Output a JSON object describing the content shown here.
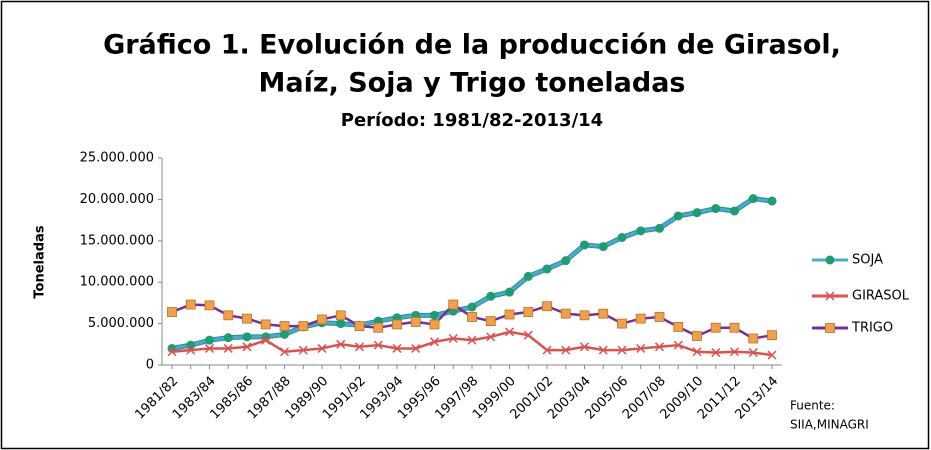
{
  "chart_data": {
    "type": "line",
    "title": [
      "Gráfico 1. Evolución de la producción de Girasol,",
      "Maíz, Soja y Trigo toneladas"
    ],
    "subtitle": "Período: 1981/82-2013/14",
    "y_label": "Toneladas",
    "source": [
      "Fuente:",
      "SIIA,MINAGRI"
    ],
    "categories": [
      "1981/82",
      null,
      "1983/84",
      null,
      "1985/86",
      null,
      "1987/88",
      null,
      "1989/90",
      null,
      "1991/92",
      null,
      "1993/94",
      null,
      "1995/96",
      null,
      "1997/98",
      null,
      "1999/00",
      null,
      "2001/02",
      null,
      "2003/04",
      null,
      "2005/06",
      null,
      "2007/08",
      null,
      "2009/10",
      null,
      "2011/12",
      null,
      "2013/14"
    ],
    "series": [
      {
        "name": "SOJA",
        "color": "#4bacc6",
        "marker": "circle",
        "marker_color": "#1e9c74",
        "values": [
          2000000,
          2400000,
          3000000,
          3300000,
          3400000,
          3400000,
          3700000,
          4600000,
          5100000,
          5000000,
          4800000,
          5300000,
          5700000,
          6000000,
          6000000,
          6500000,
          7000000,
          8300000,
          8800000,
          10700000,
          11600000,
          12600000,
          14500000,
          14300000,
          15400000,
          16200000,
          16500000,
          18000000,
          18400000,
          18900000,
          18600000,
          20100000,
          19800000
        ]
      },
      {
        "name": "GIRASOL",
        "color": "#d9534f",
        "marker": "x",
        "marker_color": "#d9534f",
        "values": [
          1600000,
          1800000,
          2000000,
          2000000,
          2200000,
          3000000,
          1600000,
          1800000,
          2000000,
          2500000,
          2200000,
          2400000,
          2000000,
          2000000,
          2800000,
          3200000,
          3000000,
          3400000,
          4000000,
          3600000,
          1800000,
          1800000,
          2200000,
          1800000,
          1800000,
          2000000,
          2200000,
          2400000,
          1600000,
          1500000,
          1600000,
          1500000,
          1200000
        ]
      },
      {
        "name": "TRIGO",
        "color": "#7030a0",
        "marker": "square",
        "marker_color": "#f0a04b",
        "values": [
          6400000,
          7300000,
          7200000,
          6000000,
          5600000,
          4900000,
          4700000,
          4700000,
          5500000,
          6000000,
          4700000,
          4500000,
          4900000,
          5200000,
          4900000,
          7300000,
          5800000,
          5300000,
          6100000,
          6400000,
          7100000,
          6200000,
          6000000,
          6200000,
          5000000,
          5600000,
          5800000,
          4600000,
          3500000,
          4500000,
          4500000,
          3200000,
          3600000
        ]
      }
    ],
    "ylim": [
      0,
      25000000
    ],
    "yticks": [
      0,
      {
        "value": 5000000,
        "label": "5.000.000"
      },
      {
        "value": 10000000,
        "label": "10.000.000"
      },
      {
        "value": 15000000,
        "label": "15.000.000"
      },
      {
        "value": 20000000,
        "label": "20.000.000"
      },
      {
        "value": 25000000,
        "label": "25.000.000"
      }
    ],
    "grid": false,
    "legend": "right"
  }
}
